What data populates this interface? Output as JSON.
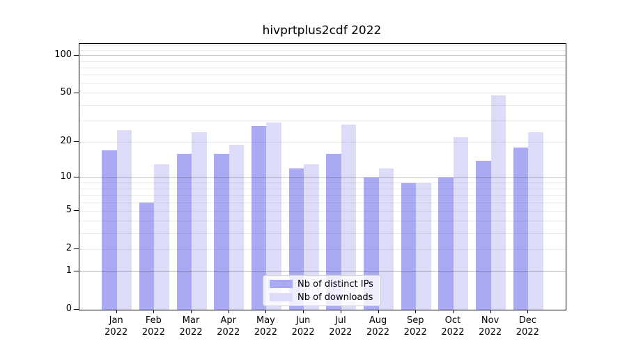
{
  "chart_data": {
    "type": "bar",
    "title": "hivprtplus2cdf 2022",
    "categories": [
      "Jan",
      "Feb",
      "Mar",
      "Apr",
      "May",
      "Jun",
      "Jul",
      "Aug",
      "Sep",
      "Oct",
      "Nov",
      "Dec"
    ],
    "year_label": "2022",
    "series": [
      {
        "name": "Nb of distinct IPs",
        "key": "distinct-ips",
        "color": "#aaaaf4",
        "values": [
          17,
          6,
          16,
          16,
          27,
          12,
          16,
          10,
          9,
          10,
          14,
          18
        ]
      },
      {
        "name": "Nb of downloads",
        "key": "downloads",
        "color": "#dcdcf9",
        "values": [
          25,
          13,
          24,
          19,
          29,
          13,
          28,
          12,
          9,
          22,
          48,
          24
        ]
      }
    ],
    "yaxis": {
      "scale": "log1p",
      "ylim": [
        0,
        124
      ],
      "tick_labels": [
        0,
        1,
        2,
        5,
        10,
        20,
        50,
        100
      ],
      "grid_major": [
        1,
        10,
        100
      ],
      "grid_minor": [
        2,
        3,
        4,
        5,
        6,
        7,
        8,
        9,
        20,
        30,
        40,
        50,
        60,
        70,
        80,
        90,
        110,
        120
      ]
    },
    "xaxis": {
      "grid": false
    },
    "legend": {
      "position": "lower center"
    }
  }
}
